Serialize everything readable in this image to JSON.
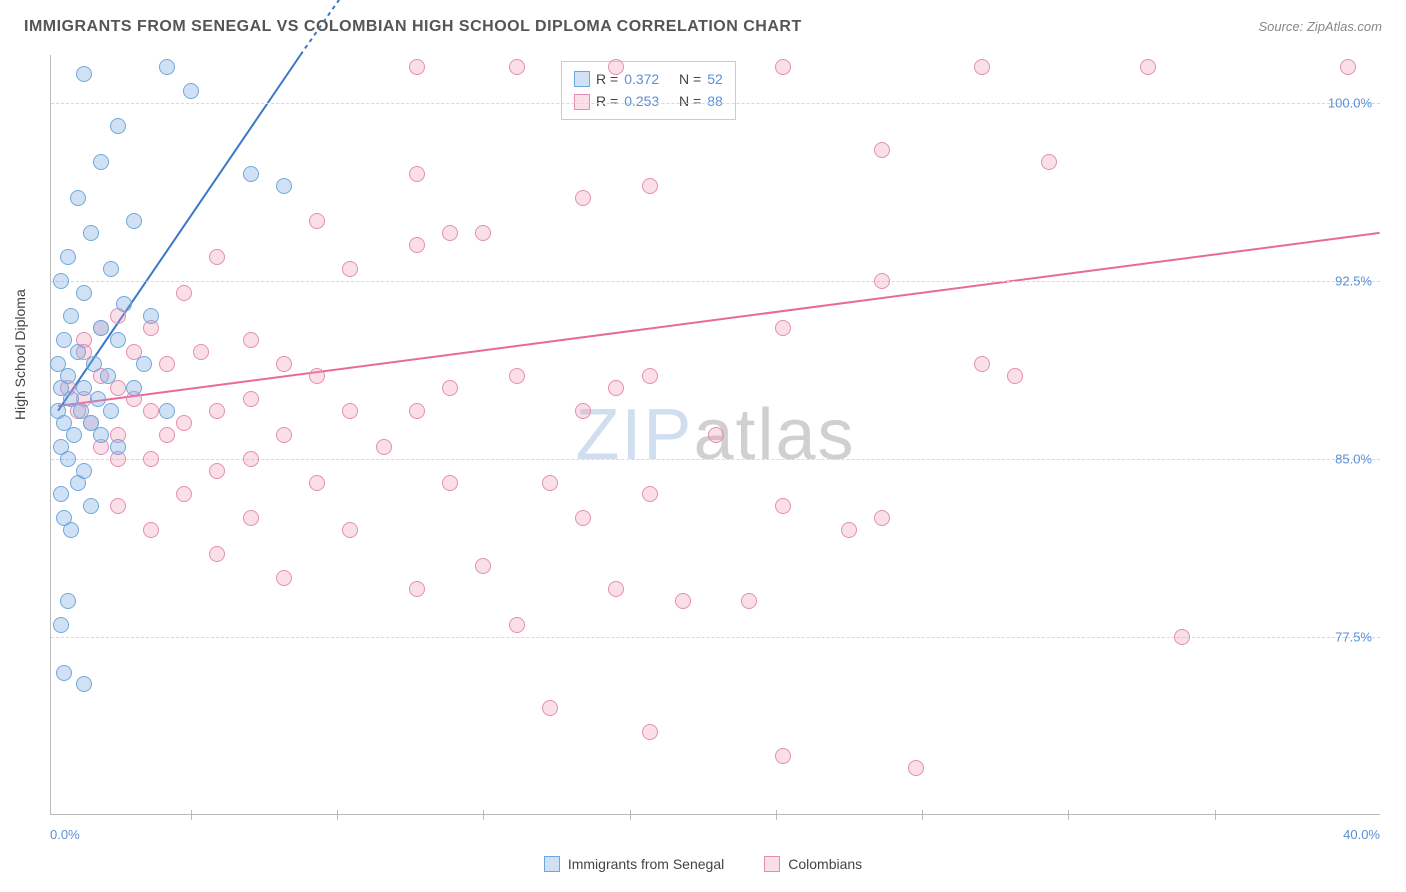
{
  "header": {
    "title": "IMMIGRANTS FROM SENEGAL VS COLOMBIAN HIGH SCHOOL DIPLOMA CORRELATION CHART",
    "source_prefix": "Source: ",
    "source_name": "ZipAtlas.com"
  },
  "chart": {
    "type": "scatter",
    "xlim": [
      0,
      40
    ],
    "ylim": [
      70,
      102
    ],
    "ylabel": "High School Diploma",
    "xtick_start": "0.0%",
    "xtick_end": "40.0%",
    "yticks": [
      {
        "val": 77.5,
        "label": "77.5%"
      },
      {
        "val": 85.0,
        "label": "85.0%"
      },
      {
        "val": 92.5,
        "label": "92.5%"
      },
      {
        "val": 100.0,
        "label": "100.0%"
      }
    ],
    "xtick_positions_pct": [
      10.5,
      21.5,
      32.5,
      43.5,
      54.5,
      65.5,
      76.5,
      87.5
    ],
    "background_color": "#ffffff",
    "grid_color": "#d8d8d8",
    "marker_radius": 8,
    "marker_border_width": 1.5,
    "series": {
      "senegal": {
        "label": "Immigrants from Senegal",
        "fill": "rgba(120,170,225,0.35)",
        "stroke": "#6fa8dc",
        "R": "0.372",
        "N": "52",
        "trend": {
          "x1": 0.2,
          "y1": 87,
          "x2": 7.5,
          "y2": 102,
          "dash_ext_x": 9.0,
          "dash_ext_y": 105,
          "color": "#3b78c4",
          "width": 2
        },
        "points": [
          {
            "x": 3.5,
            "y": 101.5
          },
          {
            "x": 1.0,
            "y": 101.2
          },
          {
            "x": 4.2,
            "y": 100.5
          },
          {
            "x": 2.0,
            "y": 99.0
          },
          {
            "x": 1.5,
            "y": 97.5
          },
          {
            "x": 6.0,
            "y": 97.0
          },
          {
            "x": 7.0,
            "y": 96.5
          },
          {
            "x": 0.8,
            "y": 96.0
          },
          {
            "x": 2.5,
            "y": 95.0
          },
          {
            "x": 1.2,
            "y": 94.5
          },
          {
            "x": 0.5,
            "y": 93.5
          },
          {
            "x": 1.8,
            "y": 93.0
          },
          {
            "x": 0.3,
            "y": 92.5
          },
          {
            "x": 1.0,
            "y": 92.0
          },
          {
            "x": 2.2,
            "y": 91.5
          },
          {
            "x": 0.6,
            "y": 91.0
          },
          {
            "x": 3.0,
            "y": 91.0
          },
          {
            "x": 1.5,
            "y": 90.5
          },
          {
            "x": 0.4,
            "y": 90.0
          },
          {
            "x": 2.0,
            "y": 90.0
          },
          {
            "x": 0.8,
            "y": 89.5
          },
          {
            "x": 1.3,
            "y": 89.0
          },
          {
            "x": 0.2,
            "y": 89.0
          },
          {
            "x": 2.8,
            "y": 89.0
          },
          {
            "x": 0.5,
            "y": 88.5
          },
          {
            "x": 1.7,
            "y": 88.5
          },
          {
            "x": 0.3,
            "y": 88.0
          },
          {
            "x": 1.0,
            "y": 88.0
          },
          {
            "x": 2.5,
            "y": 88.0
          },
          {
            "x": 0.6,
            "y": 87.5
          },
          {
            "x": 1.4,
            "y": 87.5
          },
          {
            "x": 0.2,
            "y": 87.0
          },
          {
            "x": 0.9,
            "y": 87.0
          },
          {
            "x": 1.8,
            "y": 87.0
          },
          {
            "x": 0.4,
            "y": 86.5
          },
          {
            "x": 1.2,
            "y": 86.5
          },
          {
            "x": 3.5,
            "y": 87.0
          },
          {
            "x": 0.7,
            "y": 86.0
          },
          {
            "x": 1.5,
            "y": 86.0
          },
          {
            "x": 0.3,
            "y": 85.5
          },
          {
            "x": 2.0,
            "y": 85.5
          },
          {
            "x": 0.5,
            "y": 85.0
          },
          {
            "x": 1.0,
            "y": 84.5
          },
          {
            "x": 0.8,
            "y": 84.0
          },
          {
            "x": 0.3,
            "y": 83.5
          },
          {
            "x": 1.2,
            "y": 83.0
          },
          {
            "x": 0.4,
            "y": 82.5
          },
          {
            "x": 0.6,
            "y": 82.0
          },
          {
            "x": 0.5,
            "y": 79.0
          },
          {
            "x": 0.3,
            "y": 78.0
          },
          {
            "x": 0.4,
            "y": 76.0
          },
          {
            "x": 1.0,
            "y": 75.5
          }
        ]
      },
      "colombians": {
        "label": "Colombians",
        "fill": "rgba(240,150,180,0.30)",
        "stroke": "#e58fb0",
        "R": "0.253",
        "N": "88",
        "trend": {
          "x1": 0.2,
          "y1": 87.2,
          "x2": 40,
          "y2": 94.5,
          "color": "#e86a9a",
          "width": 2
        },
        "points": [
          {
            "x": 11,
            "y": 101.5
          },
          {
            "x": 14,
            "y": 101.5
          },
          {
            "x": 17,
            "y": 101.5
          },
          {
            "x": 22,
            "y": 101.5
          },
          {
            "x": 28,
            "y": 101.5
          },
          {
            "x": 33,
            "y": 101.5
          },
          {
            "x": 39,
            "y": 101.5
          },
          {
            "x": 25,
            "y": 98.0
          },
          {
            "x": 11,
            "y": 97.0
          },
          {
            "x": 16,
            "y": 96.0
          },
          {
            "x": 18,
            "y": 96.5
          },
          {
            "x": 30,
            "y": 97.5
          },
          {
            "x": 8,
            "y": 95.0
          },
          {
            "x": 12,
            "y": 94.5
          },
          {
            "x": 13,
            "y": 94.5
          },
          {
            "x": 11,
            "y": 94.0
          },
          {
            "x": 9,
            "y": 93.0
          },
          {
            "x": 5,
            "y": 93.5
          },
          {
            "x": 4,
            "y": 92.0
          },
          {
            "x": 25,
            "y": 92.5
          },
          {
            "x": 22,
            "y": 90.5
          },
          {
            "x": 2,
            "y": 91.0
          },
          {
            "x": 3,
            "y": 90.5
          },
          {
            "x": 6,
            "y": 90.0
          },
          {
            "x": 1.5,
            "y": 90.5
          },
          {
            "x": 1.0,
            "y": 90.0
          },
          {
            "x": 2.5,
            "y": 89.5
          },
          {
            "x": 4.5,
            "y": 89.5
          },
          {
            "x": 3.5,
            "y": 89.0
          },
          {
            "x": 7,
            "y": 89.0
          },
          {
            "x": 8,
            "y": 88.5
          },
          {
            "x": 14,
            "y": 88.5
          },
          {
            "x": 18,
            "y": 88.5
          },
          {
            "x": 17,
            "y": 88.0
          },
          {
            "x": 12,
            "y": 88.0
          },
          {
            "x": 6,
            "y": 87.5
          },
          {
            "x": 2,
            "y": 88.0
          },
          {
            "x": 1,
            "y": 87.5
          },
          {
            "x": 3,
            "y": 87.0
          },
          {
            "x": 5,
            "y": 87.0
          },
          {
            "x": 9,
            "y": 87.0
          },
          {
            "x": 11,
            "y": 87.0
          },
          {
            "x": 16,
            "y": 87.0
          },
          {
            "x": 28,
            "y": 89.0
          },
          {
            "x": 4,
            "y": 86.5
          },
          {
            "x": 7,
            "y": 86.0
          },
          {
            "x": 2,
            "y": 86.0
          },
          {
            "x": 1.5,
            "y": 85.5
          },
          {
            "x": 3,
            "y": 85.0
          },
          {
            "x": 6,
            "y": 85.0
          },
          {
            "x": 10,
            "y": 85.5
          },
          {
            "x": 34,
            "y": 77.5
          },
          {
            "x": 5,
            "y": 84.5
          },
          {
            "x": 8,
            "y": 84.0
          },
          {
            "x": 12,
            "y": 84.0
          },
          {
            "x": 15,
            "y": 84.0
          },
          {
            "x": 18,
            "y": 83.5
          },
          {
            "x": 22,
            "y": 83.0
          },
          {
            "x": 25,
            "y": 82.5
          },
          {
            "x": 4,
            "y": 83.5
          },
          {
            "x": 2,
            "y": 83.0
          },
          {
            "x": 6,
            "y": 82.5
          },
          {
            "x": 3,
            "y": 82.0
          },
          {
            "x": 9,
            "y": 82.0
          },
          {
            "x": 13,
            "y": 80.5
          },
          {
            "x": 17,
            "y": 79.5
          },
          {
            "x": 19,
            "y": 79.0
          },
          {
            "x": 21,
            "y": 79.0
          },
          {
            "x": 14,
            "y": 78.0
          },
          {
            "x": 5,
            "y": 81.0
          },
          {
            "x": 7,
            "y": 80.0
          },
          {
            "x": 11,
            "y": 79.5
          },
          {
            "x": 15,
            "y": 74.5
          },
          {
            "x": 18,
            "y": 73.5
          },
          {
            "x": 22,
            "y": 72.5
          },
          {
            "x": 26,
            "y": 72.0
          },
          {
            "x": 1,
            "y": 89.5
          },
          {
            "x": 1.5,
            "y": 88.5
          },
          {
            "x": 2.5,
            "y": 87.5
          },
          {
            "x": 3.5,
            "y": 86.0
          },
          {
            "x": 0.5,
            "y": 88.0
          },
          {
            "x": 0.8,
            "y": 87.0
          },
          {
            "x": 1.2,
            "y": 86.5
          },
          {
            "x": 2,
            "y": 85.0
          },
          {
            "x": 29,
            "y": 88.5
          },
          {
            "x": 24,
            "y": 82.0
          },
          {
            "x": 20,
            "y": 86.0
          },
          {
            "x": 16,
            "y": 82.5
          }
        ]
      }
    }
  },
  "watermark": {
    "zip": "ZIP",
    "atlas": "atlas"
  },
  "stats_legend": {
    "R_label": "R =",
    "N_label": "N ="
  }
}
